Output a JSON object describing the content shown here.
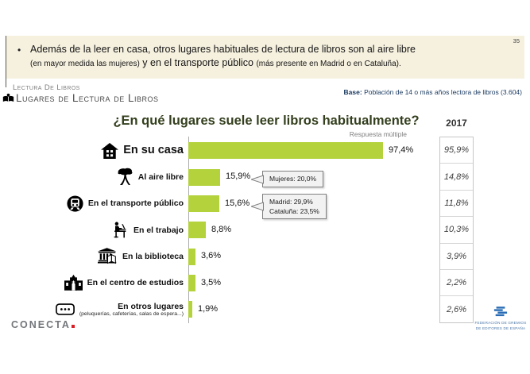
{
  "page_number": "35",
  "intro": {
    "bullet": "•",
    "lines": [
      [
        {
          "t": "Además de la leer en casa, otros lugares habituales de lectura de libros son al aire libre",
          "s": "n"
        }
      ],
      [
        {
          "t": "(en mayor medida las mujeres)",
          "s": "s"
        },
        {
          "t": " y en el transporte público ",
          "s": "n"
        },
        {
          "t": "(más presente en Madrid o en Cataluña).",
          "s": "s"
        }
      ]
    ]
  },
  "header": {
    "kicker": "Lectura De Libros",
    "title": "Lugares de Lectura de Libros"
  },
  "base": {
    "label": "Base:",
    "text": " Población de 14 o más años lectora de libros (3.604)"
  },
  "chart_data": {
    "type": "bar",
    "orientation": "horizontal",
    "title": "¿En qué lugares suele leer libros habitualmente?",
    "note": "Respuesta múltiple",
    "xlim": [
      0,
      100
    ],
    "bar_color": "#b3d23c",
    "comparison_header": "2017",
    "categories": [
      "En su casa",
      "Al aire libre",
      "En el transporte público",
      "En el trabajo",
      "En la biblioteca",
      "En el centro de estudios",
      "En otros lugares"
    ],
    "series": [
      {
        "name": "",
        "values": [
          97.4,
          15.9,
          15.6,
          8.8,
          3.6,
          3.5,
          1.9
        ]
      },
      {
        "name": "2017",
        "values": [
          95.9,
          14.8,
          11.8,
          10.3,
          3.9,
          2.2,
          2.6
        ]
      }
    ],
    "rows": [
      {
        "icon": "house-icon",
        "label": "En su casa",
        "value": 97.4,
        "value_label": "97,4%",
        "y2017": "95,9%",
        "emphasis": true
      },
      {
        "icon": "tree-icon",
        "label": "Al aire libre",
        "value": 15.9,
        "value_label": "15,9%",
        "y2017": "14,8%",
        "callout": [
          "Mujeres: 20,0%"
        ]
      },
      {
        "icon": "train-icon",
        "label": "En el transporte público",
        "value": 15.6,
        "value_label": "15,6%",
        "y2017": "11,8%",
        "callout": [
          "Madrid: 29,9%",
          "Cataluña: 23,5%"
        ]
      },
      {
        "icon": "desk-worker-icon",
        "label": "En el trabajo",
        "value": 8.8,
        "value_label": "8,8%",
        "y2017": "10,3%"
      },
      {
        "icon": "library-icon",
        "label": "En la biblioteca",
        "value": 3.6,
        "value_label": "3,6%",
        "y2017": "3,9%"
      },
      {
        "icon": "school-icon",
        "label": "En el centro de estudios",
        "value": 3.5,
        "value_label": "3,5%",
        "y2017": "2,2%"
      },
      {
        "icon": "ellipsis-icon",
        "label": "En otros lugares",
        "sublabel": "(peluquerías, cafeterías, salas de espera...)",
        "value": 1.9,
        "value_label": "1,9%",
        "y2017": "2,6%"
      }
    ]
  },
  "footer": {
    "conecta": "CONECTA",
    "fgee_line1": "FEDERACIÓN DE GREMIOS",
    "fgee_line2": "DE EDITORES DE ESPAÑA"
  }
}
